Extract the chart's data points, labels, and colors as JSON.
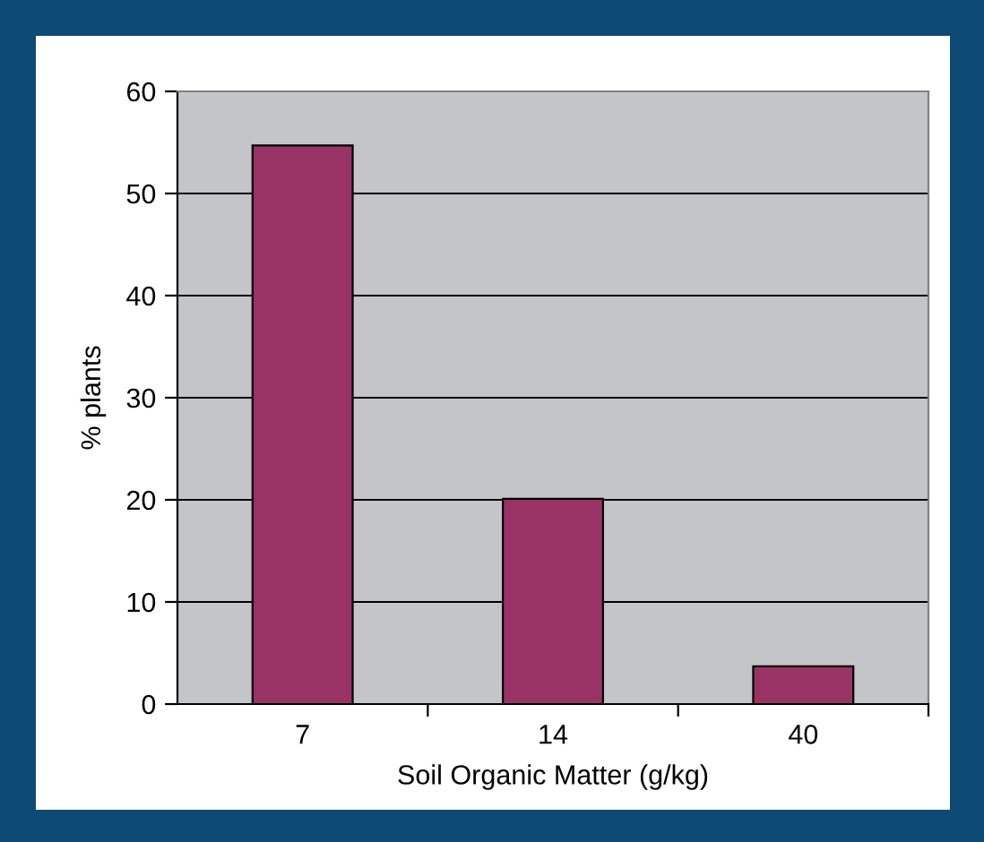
{
  "chart_data": {
    "type": "bar",
    "xlabel": "Soil Organic Matter (g/kg)",
    "ylabel": "% plants",
    "categories": [
      "7",
      "14",
      "40"
    ],
    "values": [
      54.7,
      20.1,
      3.7
    ],
    "color": "#993366",
    "ylim": [
      0,
      60
    ],
    "yticks": [
      0,
      10,
      20,
      30,
      40,
      50,
      60
    ],
    "grid": "y"
  }
}
